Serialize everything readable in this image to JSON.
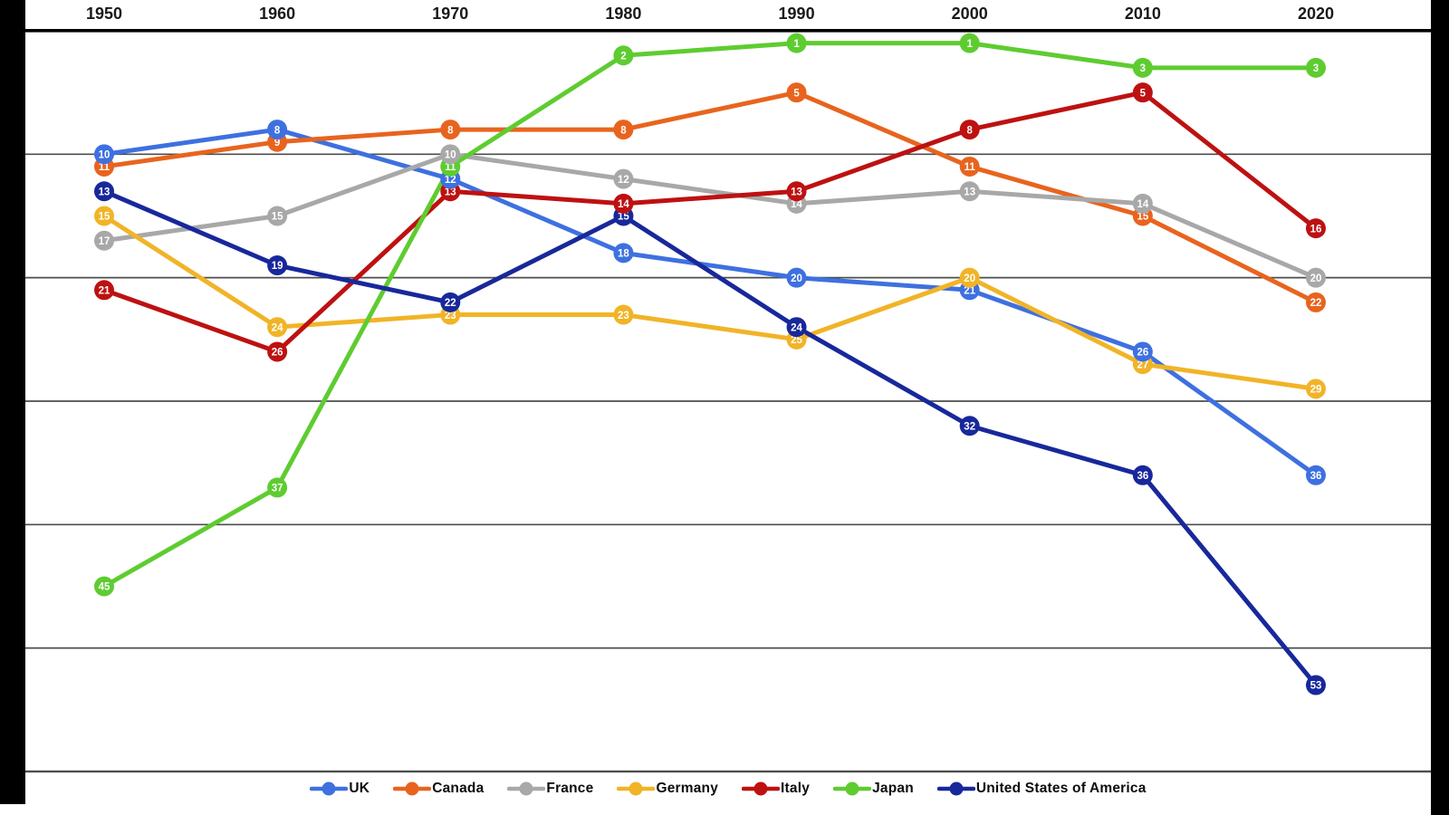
{
  "chart_data": {
    "type": "line",
    "title": "",
    "xlabel": "",
    "ylabel": "",
    "x_axis_position": "top",
    "categories": [
      "1950",
      "1960",
      "1970",
      "1980",
      "1990",
      "2000",
      "2010",
      "2020"
    ],
    "series": [
      {
        "name": "UK",
        "color": "#3E70E0",
        "values": [
          10,
          8,
          12,
          18,
          20,
          21,
          26,
          36
        ]
      },
      {
        "name": "Canada",
        "color": "#E8641E",
        "values": [
          11,
          9,
          8,
          8,
          5,
          11,
          15,
          22
        ]
      },
      {
        "name": "France",
        "color": "#A8A8A8",
        "values": [
          17,
          15,
          10,
          12,
          14,
          13,
          14,
          20
        ]
      },
      {
        "name": "Germany",
        "color": "#F1B427",
        "values": [
          15,
          24,
          23,
          23,
          25,
          20,
          27,
          29
        ]
      },
      {
        "name": "Italy",
        "color": "#BE1111",
        "values": [
          21,
          26,
          13,
          14,
          13,
          8,
          5,
          16
        ]
      },
      {
        "name": "Japan",
        "color": "#5ECC30",
        "values": [
          45,
          37,
          11,
          2,
          1,
          1,
          3,
          3
        ]
      },
      {
        "name": "United States of America",
        "color": "#18289B",
        "values": [
          13,
          19,
          22,
          15,
          24,
          32,
          36,
          53
        ]
      }
    ],
    "y_axis": {
      "inverted": true,
      "unit": "rank",
      "min": 0,
      "max": 61,
      "gridline_ranks": [
        10,
        20,
        30,
        40,
        50,
        60
      ]
    },
    "data_labels": "on-point",
    "grid": true,
    "legend_position": "bottom",
    "colors": {
      "plot_background": "#ffffff",
      "page_background": "#000000",
      "top_border": "#000000",
      "gridline": "#4d4d4d",
      "axis_label_text": "#1a1a1a",
      "marker_label_text": "#ffffff"
    }
  }
}
